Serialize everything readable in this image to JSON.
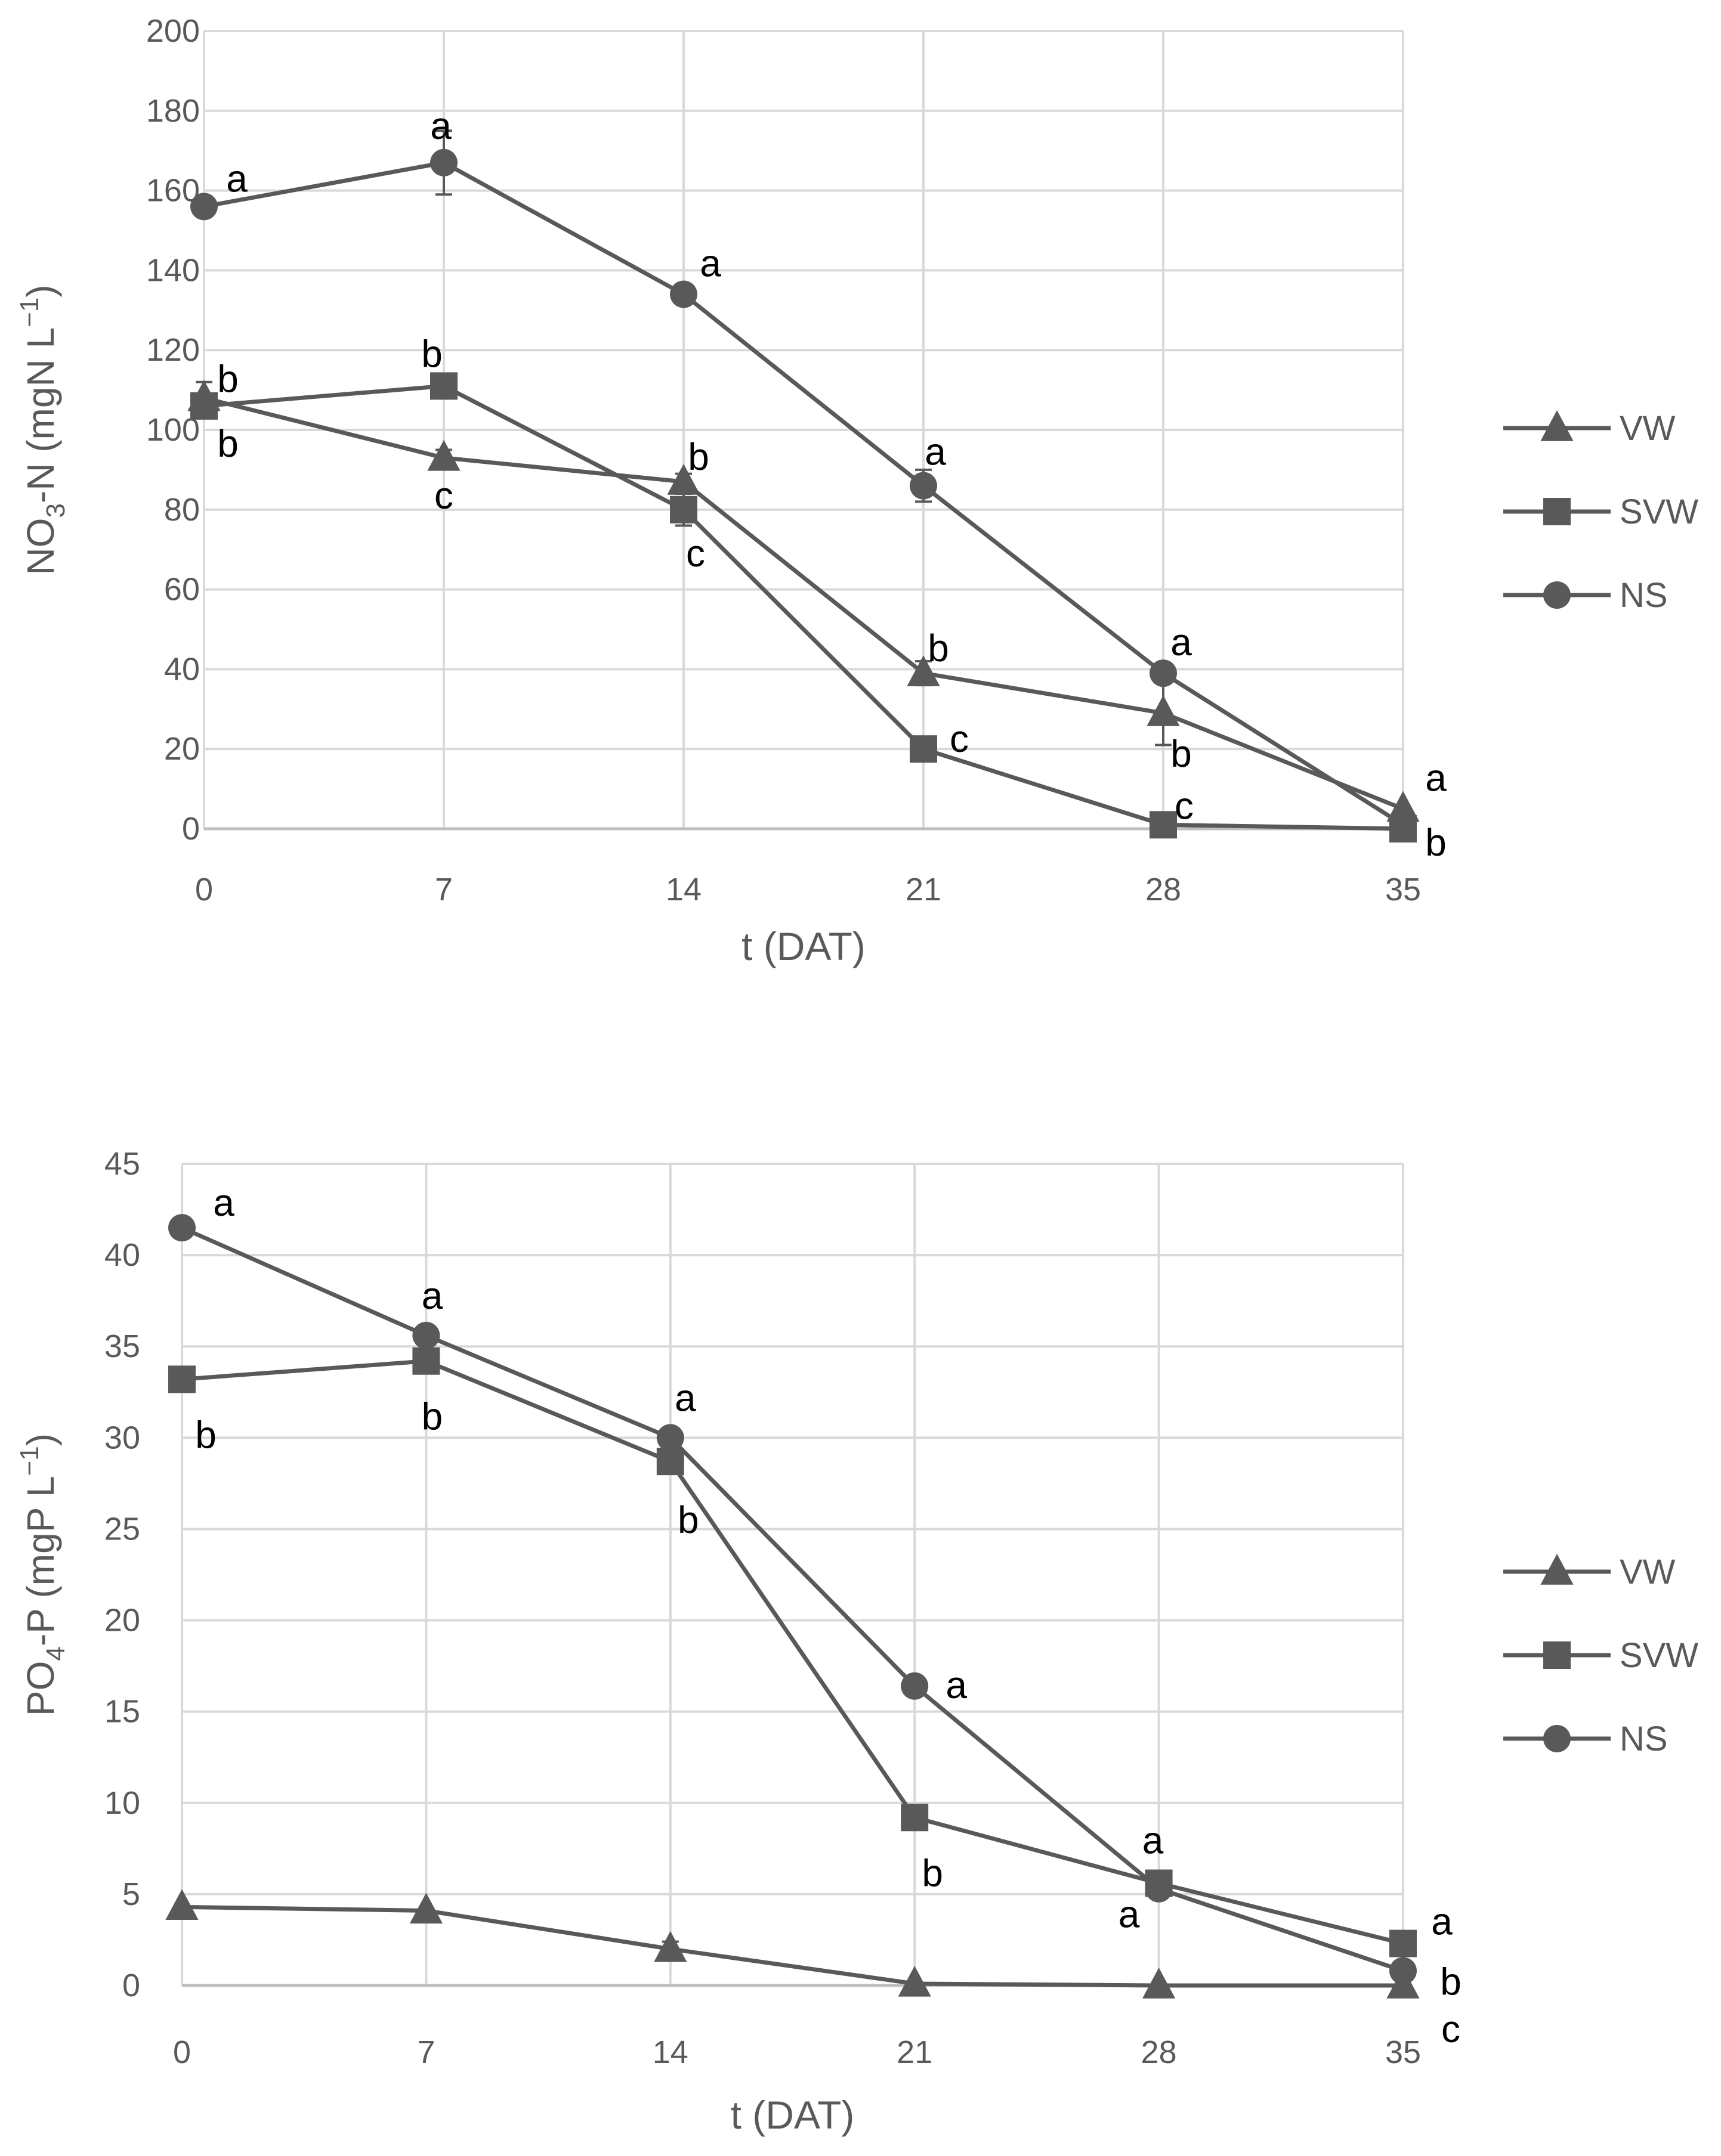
{
  "chart_data": [
    {
      "type": "line",
      "title": "",
      "ylabel": "NO3-N (mgN L−1)",
      "ylabel_main": "NO",
      "ylabel_sub": "3",
      "ylabel_rest": "-N (mgN L",
      "ylabel_sup": "−1",
      "ylabel_close": ")",
      "xlabel": "t (DAT)",
      "x": [
        0,
        7,
        14,
        21,
        28,
        35
      ],
      "xlim": [
        0,
        35
      ],
      "ylim": [
        0,
        200
      ],
      "yticks": [
        0,
        20,
        40,
        60,
        80,
        100,
        120,
        140,
        160,
        180,
        200
      ],
      "grid": true,
      "legend": "right",
      "series": [
        {
          "name": "VW",
          "marker": "triangle",
          "values": [
            108,
            93,
            87,
            39,
            29,
            5
          ],
          "errors": [
            4,
            2,
            2,
            3,
            8,
            0
          ],
          "letters": [
            "b",
            "c",
            "b",
            "b",
            "b",
            "a"
          ]
        },
        {
          "name": "SVW",
          "marker": "square",
          "values": [
            106,
            111,
            80,
            20,
            1,
            0
          ],
          "errors": [
            1,
            1,
            4,
            1,
            0,
            0
          ],
          "letters": [
            "b",
            "b",
            "c",
            "c",
            "c",
            "b"
          ]
        },
        {
          "name": "NS",
          "marker": "circle",
          "values": [
            156,
            167,
            134,
            86,
            39,
            1
          ],
          "errors": [
            1,
            8,
            1,
            4,
            1,
            0
          ],
          "letters": [
            "a",
            "a",
            "a",
            "a",
            "a",
            ""
          ]
        }
      ]
    },
    {
      "type": "line",
      "title": "",
      "ylabel": "PO4-P (mgP L−1)",
      "ylabel_main": "PO",
      "ylabel_sub": "4",
      "ylabel_rest": "-P (mgP L",
      "ylabel_sup": "−1",
      "ylabel_close": ")",
      "xlabel": "t (DAT)",
      "x": [
        0,
        7,
        14,
        21,
        28,
        35
      ],
      "xlim": [
        0,
        35
      ],
      "ylim": [
        0,
        45
      ],
      "yticks": [
        0,
        5,
        10,
        15,
        20,
        25,
        30,
        35,
        40,
        45
      ],
      "grid": true,
      "legend": "right",
      "series": [
        {
          "name": "VW",
          "marker": "triangle",
          "values": [
            4.3,
            4.1,
            2.0,
            0.1,
            0.0,
            0.0
          ],
          "errors": [
            0,
            0,
            0.4,
            0,
            0,
            0
          ],
          "letters": [
            "",
            "",
            "",
            "",
            "",
            "c"
          ]
        },
        {
          "name": "SVW",
          "marker": "square",
          "values": [
            33.2,
            34.2,
            28.7,
            9.2,
            5.6,
            2.3
          ],
          "errors": [
            0,
            0,
            0,
            0,
            0,
            0
          ],
          "letters": [
            "b",
            "b",
            "b",
            "b",
            "a",
            "a"
          ]
        },
        {
          "name": "NS",
          "marker": "circle",
          "values": [
            41.5,
            35.6,
            30.0,
            16.4,
            5.3,
            0.8
          ],
          "errors": [
            0,
            0,
            0,
            0,
            0,
            0
          ],
          "letters": [
            "a",
            "a",
            "a",
            "a",
            "a",
            "b"
          ]
        }
      ]
    }
  ],
  "colors": {
    "series": "#595959",
    "grid": "#d9d9d9",
    "axis": "#bfbfbf",
    "tick_text": "#595959",
    "letter_text": "#000000"
  }
}
